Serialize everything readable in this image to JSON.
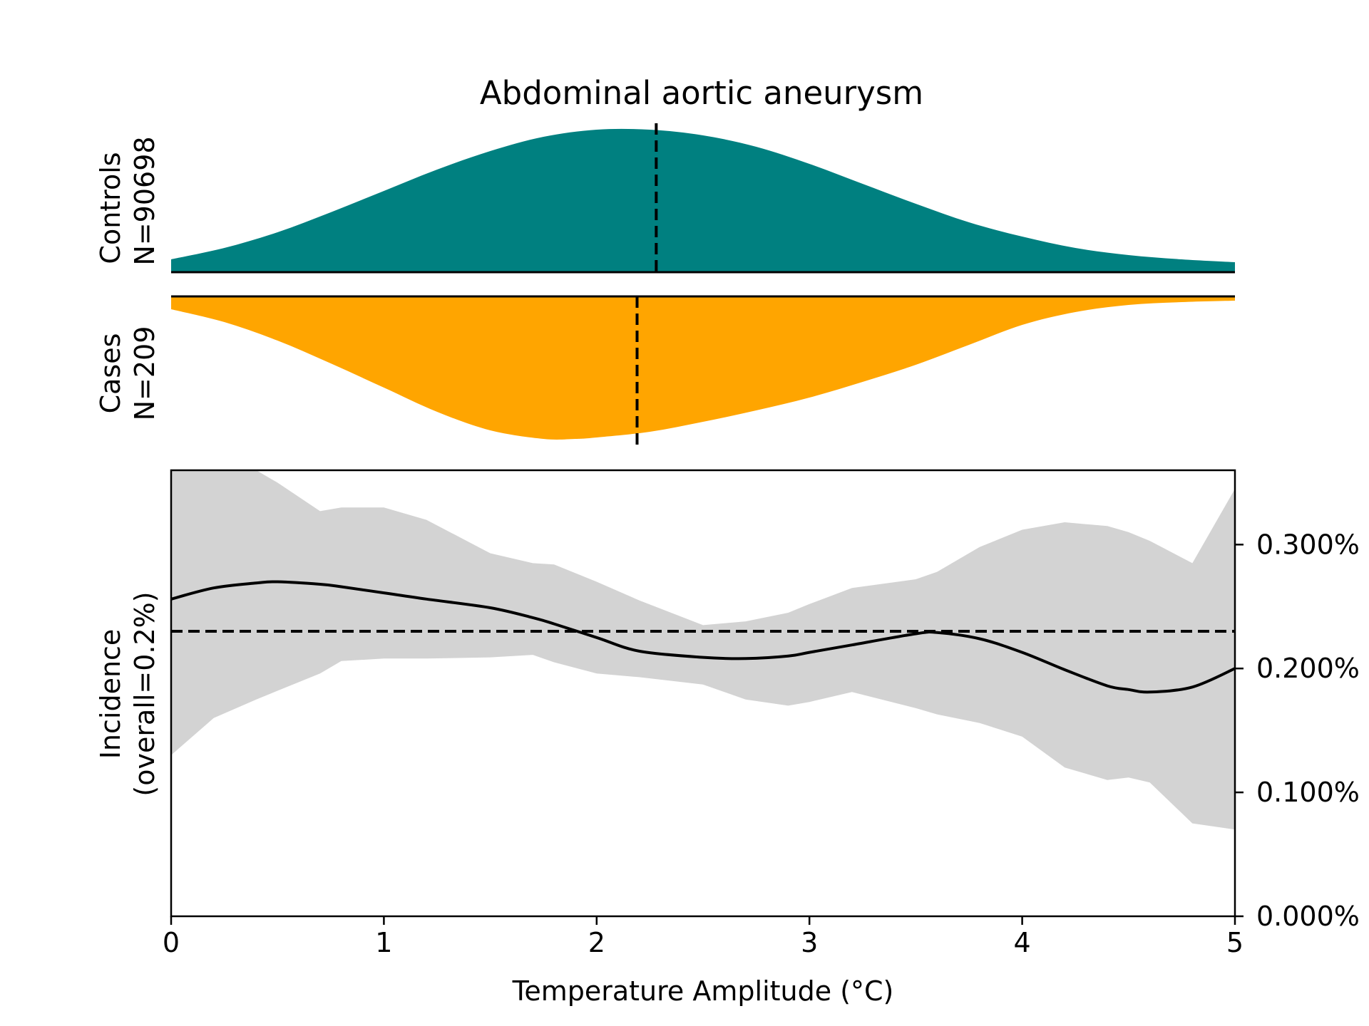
{
  "chart_data": {
    "type": "area",
    "title": "Abdominal aortic aneurysm",
    "xlabel": "Temperature Amplitude (°C)",
    "xlim": [
      0,
      5
    ],
    "x_ticks": [
      "0",
      "1",
      "2",
      "3",
      "4",
      "5"
    ],
    "distributions": {
      "controls": {
        "label_line1": "Controls",
        "label_line2": "N=90698",
        "color": "#008080",
        "median": 2.28,
        "x": [
          0,
          0.25,
          0.5,
          0.75,
          1,
          1.25,
          1.5,
          1.75,
          2,
          2.25,
          2.5,
          2.75,
          3,
          3.25,
          3.5,
          3.75,
          4,
          4.25,
          4.5,
          4.75,
          5
        ],
        "density": [
          0.09,
          0.17,
          0.28,
          0.42,
          0.57,
          0.72,
          0.85,
          0.95,
          1.0,
          1.0,
          0.96,
          0.88,
          0.76,
          0.62,
          0.48,
          0.35,
          0.25,
          0.17,
          0.12,
          0.09,
          0.07
        ]
      },
      "cases": {
        "label_line1": "Cases",
        "label_line2": "N=209",
        "color": "#FFA500",
        "median": 2.19,
        "x": [
          0,
          0.25,
          0.5,
          0.75,
          1,
          1.25,
          1.5,
          1.75,
          1.9,
          2,
          2.25,
          2.5,
          2.75,
          3,
          3.25,
          3.5,
          3.75,
          4,
          4.25,
          4.5,
          4.75,
          5
        ],
        "density": [
          0.09,
          0.18,
          0.31,
          0.47,
          0.64,
          0.81,
          0.94,
          1.0,
          1.0,
          0.99,
          0.95,
          0.88,
          0.8,
          0.71,
          0.6,
          0.48,
          0.34,
          0.2,
          0.11,
          0.06,
          0.04,
          0.03
        ]
      }
    },
    "incidence": {
      "ylabel_line1": "Incidence",
      "ylabel_line2": "(overall=0.2%)",
      "ylim": [
        0,
        0.36
      ],
      "y_ticks": [
        0,
        0.1,
        0.2,
        0.3
      ],
      "y_tick_labels": [
        "0.000%",
        "0.100%",
        "0.200%",
        "0.300%"
      ],
      "overall": 0.23,
      "band_color": "#d3d3d3",
      "x": [
        0,
        0.2,
        0.4,
        0.5,
        0.7,
        0.8,
        1.0,
        1.2,
        1.5,
        1.7,
        1.8,
        2.0,
        2.2,
        2.5,
        2.7,
        2.9,
        3.0,
        3.2,
        3.5,
        3.6,
        3.8,
        4.0,
        4.2,
        4.4,
        4.5,
        4.6,
        4.8,
        5.0
      ],
      "value": [
        0.256,
        0.265,
        0.269,
        0.27,
        0.268,
        0.266,
        0.261,
        0.256,
        0.249,
        0.241,
        0.236,
        0.225,
        0.214,
        0.209,
        0.208,
        0.21,
        0.213,
        0.219,
        0.228,
        0.229,
        0.224,
        0.213,
        0.199,
        0.186,
        0.183,
        0.181,
        0.185,
        0.2
      ],
      "upper": [
        0.36,
        0.36,
        0.36,
        0.35,
        0.327,
        0.33,
        0.33,
        0.32,
        0.293,
        0.285,
        0.284,
        0.27,
        0.255,
        0.235,
        0.238,
        0.245,
        0.252,
        0.265,
        0.272,
        0.278,
        0.298,
        0.312,
        0.318,
        0.315,
        0.31,
        0.303,
        0.285,
        0.345
      ],
      "lower": [
        0.13,
        0.16,
        0.175,
        0.182,
        0.196,
        0.206,
        0.208,
        0.208,
        0.209,
        0.211,
        0.205,
        0.196,
        0.193,
        0.187,
        0.175,
        0.17,
        0.173,
        0.181,
        0.168,
        0.163,
        0.156,
        0.145,
        0.12,
        0.11,
        0.112,
        0.108,
        0.075,
        0.07
      ]
    }
  }
}
